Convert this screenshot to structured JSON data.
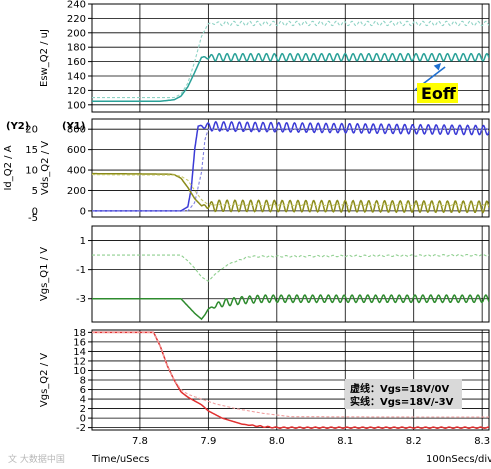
{
  "footer": {
    "x_axis_label": "Time/uSecs",
    "x_scale": "100nSecs/div",
    "watermark": "文 大数据中国"
  },
  "chart_data": [
    {
      "type": "line",
      "ylabel": "Esw_Q2 / uJ",
      "ylim": [
        90,
        240
      ],
      "yticks": [
        100,
        120,
        140,
        160,
        180,
        200,
        220,
        240
      ],
      "xlim": [
        7.73,
        8.31
      ],
      "grid": true,
      "series": [
        {
          "style": "solid",
          "color": "#2aa198",
          "x": [
            7.73,
            7.83,
            7.85,
            7.86,
            7.87,
            7.88,
            7.89,
            8.31
          ],
          "y": [
            105,
            105,
            107,
            112,
            125,
            145,
            166,
            166
          ],
          "ripple": 5,
          "ripple_start": 7.89
        },
        {
          "style": "dashed",
          "color": "#8fd3c5",
          "x": [
            7.73,
            7.85,
            7.86,
            7.87,
            7.88,
            7.89,
            7.9,
            8.31
          ],
          "y": [
            110,
            110,
            115,
            130,
            160,
            195,
            213,
            213
          ],
          "ripple": 3,
          "ripple_start": 7.9
        }
      ],
      "annotation": {
        "text": "Eoff",
        "bg": "#ffff00",
        "arrow_x": 8.24,
        "arrow_y": 158
      }
    },
    {
      "type": "line",
      "ylabel": "Vds_Q2 / V",
      "ylabel_secondary": "Id_Q2 / A",
      "y1_tag": "(Y1)",
      "y2_tag": "(Y2)",
      "ylim": [
        -60,
        900
      ],
      "yticks": [
        0,
        200,
        400,
        600,
        800
      ],
      "y2_ticks": [
        "0",
        "5",
        "10",
        "15",
        "20"
      ],
      "y2_extra_tick": "-5",
      "xlim": [
        7.73,
        8.31
      ],
      "grid": true,
      "series": [
        {
          "style": "solid",
          "color": "#3b3bd6",
          "x": [
            7.73,
            7.86,
            7.87,
            7.875,
            7.88,
            7.885,
            8.31
          ],
          "y": [
            0,
            0,
            40,
            220,
            600,
            830,
            790
          ],
          "ripple": 45,
          "ripple_start": 7.885
        },
        {
          "style": "dashed",
          "color": "#7f7fe0",
          "x": [
            7.73,
            7.87,
            7.88,
            7.89,
            7.895,
            7.9,
            8.31
          ],
          "y": [
            0,
            0,
            80,
            380,
            700,
            800,
            800
          ],
          "ripple": 8,
          "ripple_start": 7.9
        },
        {
          "style": "solid",
          "color": "#8b8b1a",
          "x": [
            7.73,
            7.84,
            7.85,
            7.86,
            7.87,
            7.88,
            7.89,
            8.31
          ],
          "y": [
            365,
            360,
            355,
            320,
            230,
            120,
            50,
            40
          ],
          "ripple": 55,
          "ripple_start": 7.89
        },
        {
          "style": "dashed",
          "color": "#c9c970",
          "x": [
            7.73,
            7.85,
            7.86,
            7.87,
            7.88,
            7.89,
            7.9,
            8.31
          ],
          "y": [
            355,
            350,
            340,
            300,
            200,
            110,
            60,
            60
          ],
          "ripple": 8,
          "ripple_start": 7.9
        }
      ]
    },
    {
      "type": "line",
      "ylabel": "Vgs_Q1 / V",
      "ylim": [
        -4.6,
        2
      ],
      "yticks": [
        1,
        -1,
        -3
      ],
      "ytick_labels": [
        "1",
        "-1",
        "-3"
      ],
      "xlim": [
        7.73,
        8.31
      ],
      "grid": true,
      "series": [
        {
          "style": "solid",
          "color": "#2e8b2e",
          "x": [
            7.73,
            7.86,
            7.87,
            7.88,
            7.89,
            7.895,
            7.9,
            7.92,
            7.95,
            7.98,
            8.31
          ],
          "y": [
            -3,
            -3,
            -3.5,
            -4.0,
            -4.4,
            -4.1,
            -3.7,
            -3.3,
            -3.1,
            -3.0,
            -3.0
          ],
          "ripple": 0.25,
          "ripple_start": 7.9
        },
        {
          "style": "dashed",
          "color": "#8fcf8f",
          "x": [
            7.73,
            7.86,
            7.87,
            7.88,
            7.89,
            7.9,
            7.91,
            7.93,
            7.96,
            8.31
          ],
          "y": [
            0,
            0,
            -0.4,
            -0.9,
            -1.5,
            -1.8,
            -1.3,
            -0.6,
            -0.1,
            0
          ],
          "ripple": 0.05,
          "ripple_start": 7.93
        }
      ]
    },
    {
      "type": "line",
      "ylabel": "Vgs_Q2 / V",
      "ylim": [
        -2.5,
        18.5
      ],
      "yticks": [
        -2,
        0,
        2,
        4,
        6,
        8,
        10,
        12,
        14,
        16,
        18
      ],
      "xlim": [
        7.73,
        8.31
      ],
      "xticks": [
        7.8,
        7.9,
        8.0,
        8.1,
        8.2,
        8.3
      ],
      "xtick_labels": [
        "7.8",
        "7.9",
        "8.0",
        "8.1",
        "8.2",
        "8.3"
      ],
      "grid": true,
      "series": [
        {
          "style": "solid",
          "color": "#e03030",
          "x": [
            7.73,
            7.82,
            7.83,
            7.84,
            7.85,
            7.86,
            7.87,
            7.88,
            7.89,
            7.9,
            7.92,
            7.95,
            7.98,
            8.0,
            8.31
          ],
          "y": [
            18,
            18,
            15,
            11,
            8,
            5.5,
            4.4,
            3.6,
            2.8,
            1.5,
            0,
            -1.3,
            -1.8,
            -2,
            -2
          ],
          "ripple": 0.12,
          "ripple_start": 7.95
        },
        {
          "style": "dashed",
          "color": "#f0a0a0",
          "x": [
            7.73,
            7.82,
            7.83,
            7.84,
            7.85,
            7.86,
            7.87,
            7.89,
            7.91,
            7.94,
            7.98,
            8.02,
            8.31
          ],
          "y": [
            18,
            18,
            15,
            11,
            8,
            6,
            5,
            4,
            3,
            2,
            1,
            0.3,
            0.2
          ],
          "ripple": 0,
          "ripple_start": 8.31
        }
      ],
      "legend": {
        "line1": "虚线：Vgs=18V/0V",
        "line2": "实线：Vgs=18V/-3V",
        "bg": "#d9d9d9"
      }
    }
  ]
}
